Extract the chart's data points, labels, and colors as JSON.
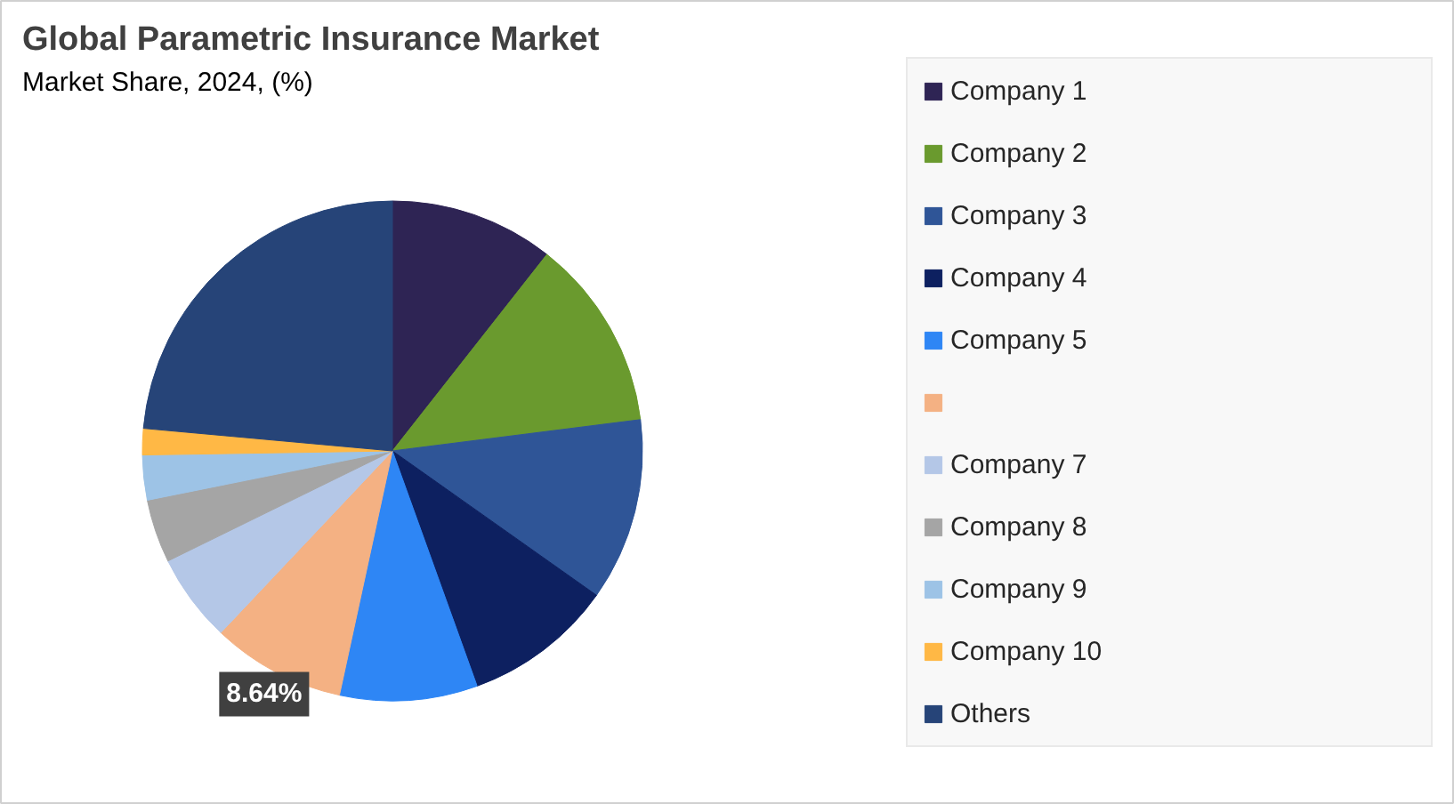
{
  "chart_data": {
    "type": "pie",
    "title": "Global Parametric Insurance Market",
    "subtitle": "Market Share, 2024, (%)",
    "categories": [
      "Company 1",
      "Company 2",
      "Company 3",
      "Company 4",
      "Company 5",
      null,
      "Company 7",
      "Company 8",
      "Company 9",
      "Company 10",
      "Others"
    ],
    "values": [
      10.6,
      12.4,
      11.8,
      9.7,
      8.9,
      8.64,
      5.7,
      4.1,
      2.9,
      1.7,
      23.56
    ],
    "colors": [
      "#2e2454",
      "#6a9a2e",
      "#2f5597",
      "#0d2060",
      "#2e86f5",
      "#f4b183",
      "#b4c7e7",
      "#a5a5a5",
      "#9dc3e6",
      "#ffb845",
      "#264478"
    ],
    "value_labels": [
      null,
      null,
      null,
      null,
      null,
      "8.64%",
      null,
      null,
      null,
      null,
      null
    ],
    "legend": "right"
  }
}
